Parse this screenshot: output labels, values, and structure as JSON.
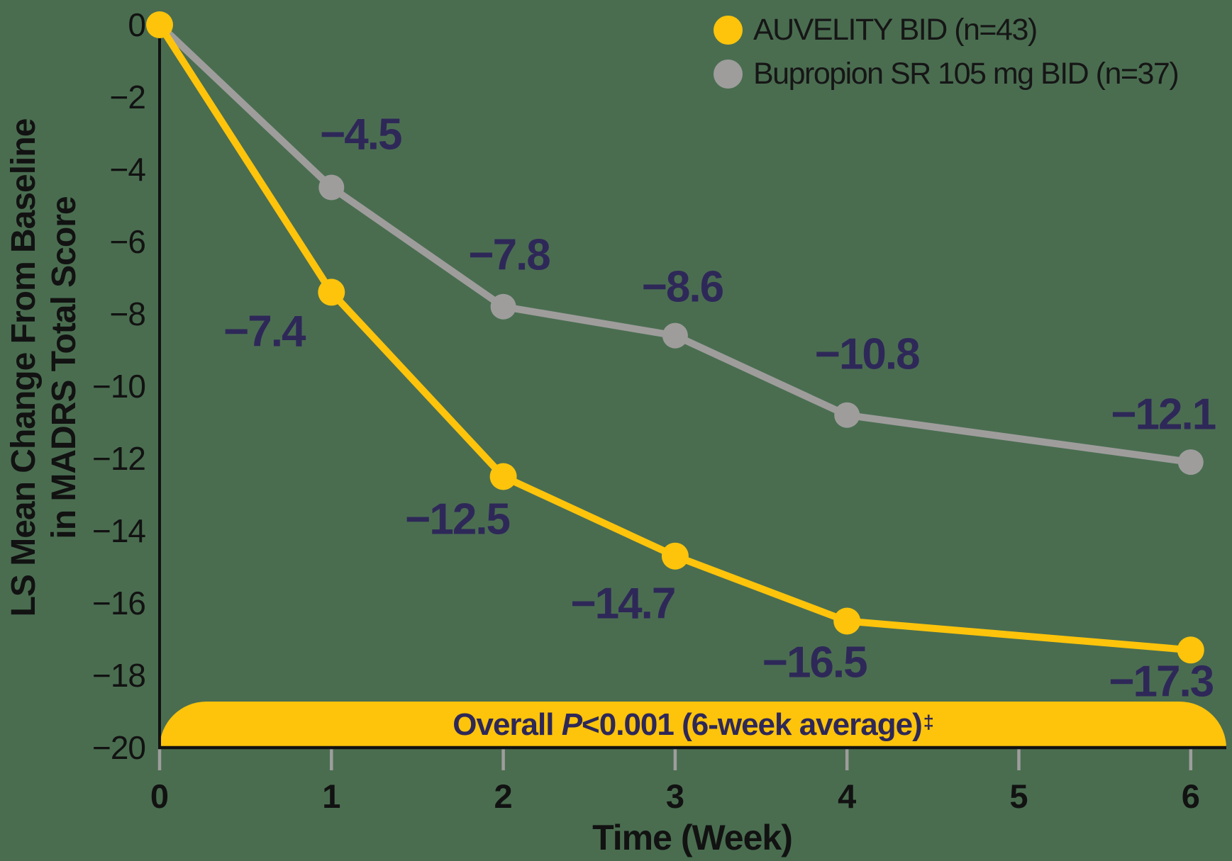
{
  "colors": {
    "background": "#4a6d50",
    "axis": "#121212",
    "tick": "#9e9d9c",
    "label_navy": "#2e2858",
    "auvelity_yellow": "#fdc40b",
    "bupropion_gray": "#9e9d9c"
  },
  "legend": {
    "items": [
      {
        "label": "AUVELITY BID (n=43)",
        "color": "#fdc40b"
      },
      {
        "label": "Bupropion SR 105 mg BID (n=37)",
        "color": "#9e9d9c"
      }
    ]
  },
  "banner": {
    "prefix": "Overall ",
    "p": "P",
    "rest": "<0.001 (6-week average)",
    "dagger": "‡"
  },
  "chart_data": {
    "type": "line",
    "title": "",
    "xlabel": "Time (Week)",
    "ylabel_line1": "LS Mean Change From Baseline",
    "ylabel_line2": "in MADRS Total Score",
    "xlim": [
      0,
      6
    ],
    "ylim": [
      -20,
      0
    ],
    "x_ticks": [
      0,
      1,
      2,
      3,
      4,
      5,
      6
    ],
    "y_ticks": [
      0,
      -2,
      -4,
      -6,
      -8,
      -10,
      -12,
      -14,
      -16,
      -18,
      -20
    ],
    "grid": false,
    "legend_position": "top-right",
    "annotation": "Overall P<0.001 (6-week average)‡",
    "series": [
      {
        "name": "AUVELITY BID (n=43)",
        "color": "#fdc40b",
        "x": [
          0,
          1,
          2,
          3,
          4,
          6
        ],
        "values": [
          0,
          -7.4,
          -12.5,
          -14.7,
          -16.5,
          -17.3
        ],
        "point_labels": [
          "",
          "−7.4",
          "−12.5",
          "−14.7",
          "−16.5",
          "−17.3"
        ]
      },
      {
        "name": "Bupropion SR 105 mg BID (n=37)",
        "color": "#9e9d9c",
        "x": [
          0,
          1,
          2,
          3,
          4,
          6
        ],
        "values": [
          0,
          -4.5,
          -7.8,
          -8.6,
          -10.8,
          -12.1
        ],
        "point_labels": [
          "",
          "−4.5",
          "−7.8",
          "−8.6",
          "−10.8",
          "−12.1"
        ]
      }
    ]
  }
}
